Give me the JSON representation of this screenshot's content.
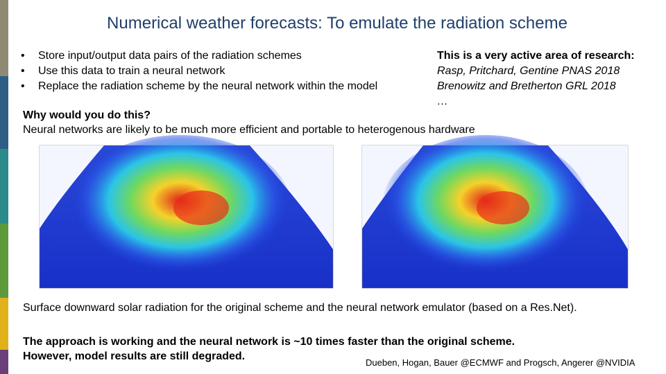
{
  "header": {
    "title": "Numerical weather forecasts: To emulate the radiation scheme"
  },
  "bullets": [
    "Store input/output data pairs of the radiation schemes",
    "Use this data to train a neural network",
    "Replace the radiation scheme by the neural network within the model"
  ],
  "research": {
    "heading": "This is a very active area of research:",
    "references": [
      "Rasp, Pritchard, Gentine PNAS 2018",
      "Brenowitz and Bretherton GRL 2018",
      "…"
    ]
  },
  "why": {
    "heading": "Why would you do this?",
    "text": "Neural networks are likely to be much more efficient and portable to heterogenous hardware"
  },
  "caption": "Surface downward solar radiation for the original scheme and the neural network emulator (based on a Res.Net).",
  "conclusion": [
    "The approach is working and the neural network is ~10 times faster than the original scheme.",
    "However, model results are still degraded."
  ],
  "credit": "Dueben, Hogan, Bauer @ECMWF and Progsch, Angerer @NVIDIA"
}
